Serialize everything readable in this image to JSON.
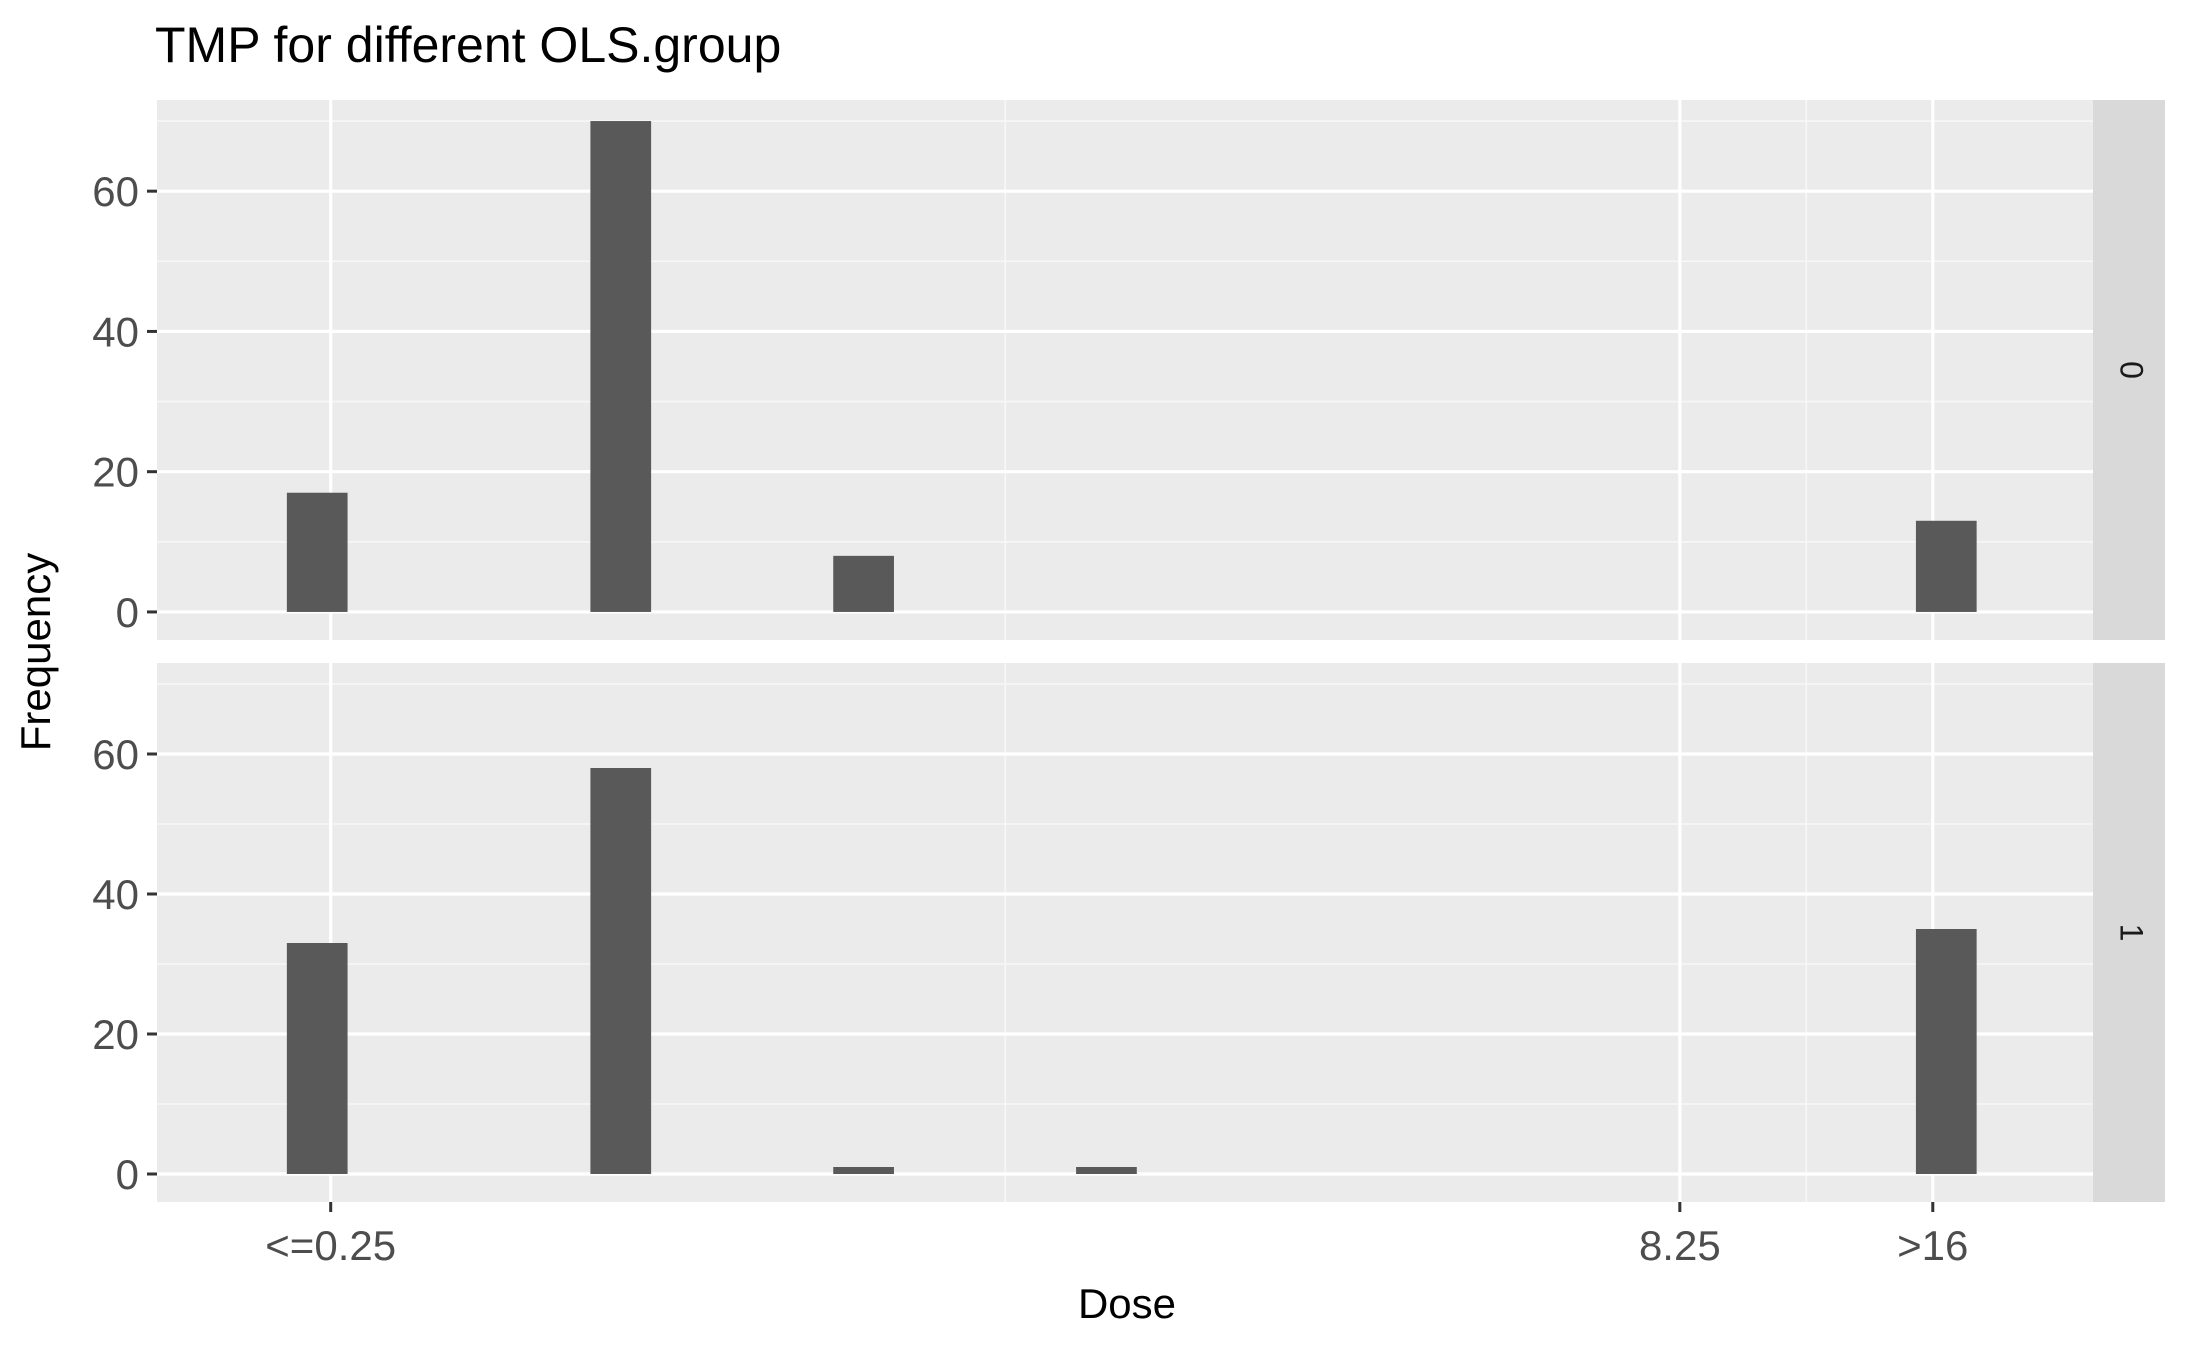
{
  "chart_data": {
    "type": "bar",
    "title": "TMP for different OLS.group",
    "xlabel": "Dose",
    "ylabel": "Frequency",
    "x_tick_labels": [
      {
        "label": "<=0.25",
        "x": 0.25
      },
      {
        "label": "8.25",
        "x": 8.25
      },
      {
        "label": ">16",
        "x": 9.75
      }
    ],
    "x_minor_gridlines": [
      4.25,
      9.0
    ],
    "xlim": [
      -0.78,
      10.7
    ],
    "ylim": [
      -4,
      73
    ],
    "y_ticks": [
      0,
      20,
      40,
      60
    ],
    "bar_width": 0.36,
    "grid": true,
    "facets": [
      {
        "strip_label": "0",
        "bars": [
          {
            "x": 0.17,
            "value": 17
          },
          {
            "x": 1.97,
            "value": 70
          },
          {
            "x": 3.41,
            "value": 8
          },
          {
            "x": 9.83,
            "value": 13
          }
        ]
      },
      {
        "strip_label": "1",
        "bars": [
          {
            "x": 0.17,
            "value": 33
          },
          {
            "x": 1.97,
            "value": 58
          },
          {
            "x": 3.41,
            "value": 1
          },
          {
            "x": 4.85,
            "value": 1
          },
          {
            "x": 9.83,
            "value": 35
          }
        ]
      }
    ],
    "colors": {
      "bar": "#595959",
      "panel_background": "#ebebeb",
      "strip_background": "#d9d9d9",
      "grid_major": "#ffffff",
      "grid_minor": "#f7f7f7"
    }
  }
}
